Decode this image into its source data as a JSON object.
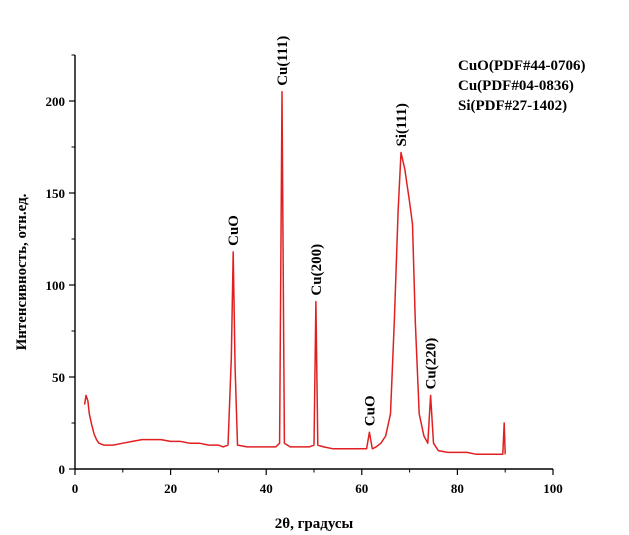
{
  "chart_data": {
    "type": "line",
    "xlabel": "2θ, градусы",
    "ylabel": "Интенсивность, отн.ед.",
    "xlim": [
      0,
      100
    ],
    "ylim": [
      0,
      225
    ],
    "xticks": [
      0,
      20,
      40,
      60,
      80,
      100
    ],
    "yticks": [
      0,
      50,
      100,
      150,
      200
    ],
    "xtick_labels": [
      "0",
      "20",
      "40",
      "60",
      "80",
      "100"
    ],
    "ytick_labels": [
      "0",
      "50",
      "100",
      "150",
      "200"
    ],
    "grid": false,
    "line_color": "#e02020",
    "legend_entries": [
      "CuO(PDF#44-0706)",
      "Cu(PDF#04-0836)",
      "Si(PDF#27-1402)"
    ],
    "series": [
      {
        "x": [
          2,
          2.3,
          2.7,
          3,
          3.5,
          4,
          4.5,
          5,
          6,
          8,
          10,
          12,
          14,
          16,
          18,
          20,
          22,
          24,
          26,
          28,
          30,
          31,
          32,
          32.7,
          33.1,
          33.5,
          34,
          36,
          38,
          40,
          42,
          42.8,
          43.3,
          43.8,
          45,
          47,
          49,
          50,
          50.4,
          50.8,
          52,
          54,
          56,
          58,
          60,
          61,
          61.6,
          62.2,
          63,
          64,
          65,
          66,
          66.8,
          67.6,
          68.2,
          69,
          70,
          70.6,
          71.2,
          72,
          73,
          73.8,
          74.4,
          75,
          76,
          78,
          80,
          82,
          84,
          86,
          88,
          89.5,
          89.8,
          90
        ],
        "y": [
          35,
          40,
          37,
          30,
          24,
          19,
          16,
          14,
          13,
          13,
          14,
          15,
          16,
          16,
          16,
          15,
          15,
          14,
          14,
          13,
          13,
          12,
          13,
          60,
          118,
          55,
          13,
          12,
          12,
          12,
          12,
          14,
          205,
          14,
          12,
          12,
          12,
          13,
          91,
          13,
          12,
          11,
          11,
          11,
          11,
          11,
          20,
          11,
          12,
          14,
          18,
          30,
          80,
          140,
          172,
          163,
          145,
          133,
          80,
          30,
          18,
          14,
          40,
          14,
          10,
          9,
          9,
          9,
          8,
          8,
          8,
          8,
          25,
          8
        ]
      }
    ],
    "annotations": [
      {
        "text": "CuO",
        "x": 33.1
      },
      {
        "text": "Cu(111)",
        "x": 43.3
      },
      {
        "text": "Cu(200)",
        "x": 50.4
      },
      {
        "text": "CuO",
        "x": 61.6
      },
      {
        "text": "Si(111)",
        "x": 68.2
      },
      {
        "text": "Cu(220)",
        "x": 74.4
      }
    ]
  }
}
